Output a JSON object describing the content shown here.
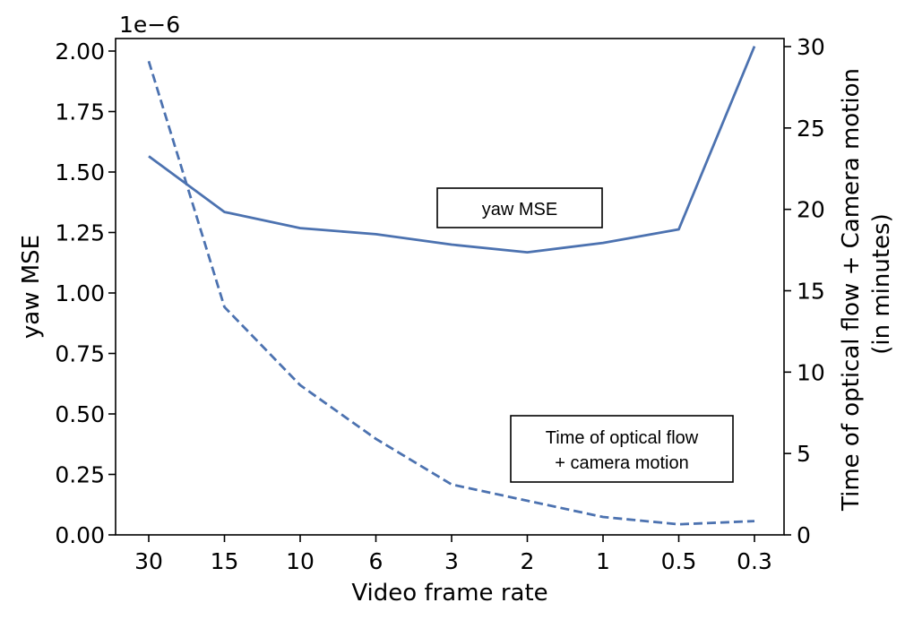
{
  "chart_data": {
    "type": "line",
    "categories": [
      "30",
      "15",
      "10",
      "6",
      "3",
      "2",
      "1",
      "0.5",
      "0.3"
    ],
    "xlabel": "Video frame rate",
    "ylabel_left": "yaw MSE",
    "ylabel_right_lines": [
      "Time of optical flow + Camera motion",
      "(in minutes)"
    ],
    "y_left": {
      "lim": [
        0,
        2.0
      ],
      "scale_label": "1e−6",
      "ticks": [
        "0.00",
        "0.25",
        "0.50",
        "0.75",
        "1.00",
        "1.25",
        "1.50",
        "1.75",
        "2.00"
      ],
      "tick_values": [
        0,
        0.25,
        0.5,
        0.75,
        1.0,
        1.25,
        1.5,
        1.75,
        2.0
      ]
    },
    "y_right": {
      "lim": [
        0,
        30
      ],
      "ticks": [
        "0",
        "5",
        "10",
        "15",
        "20",
        "25",
        "30"
      ],
      "tick_values": [
        0,
        5,
        10,
        15,
        20,
        25,
        30
      ]
    },
    "series": [
      {
        "name": "yaw MSE",
        "axis": "left",
        "style": "solid",
        "color": "#4c72b0",
        "values": [
          1.565,
          1.335,
          1.268,
          1.243,
          1.2,
          1.168,
          1.207,
          1.263,
          2.02
        ]
      },
      {
        "name": "Time of optical flow + camera motion",
        "axis": "right",
        "style": "dashed",
        "color": "#4c72b0",
        "values": [
          29.1,
          14.0,
          9.2,
          5.9,
          3.1,
          2.1,
          1.1,
          0.65,
          0.85
        ]
      }
    ],
    "annotations": [
      {
        "lines": [
          "yaw MSE"
        ]
      },
      {
        "lines": [
          "Time of optical flow",
          "+ camera motion"
        ]
      }
    ],
    "grid": false
  }
}
